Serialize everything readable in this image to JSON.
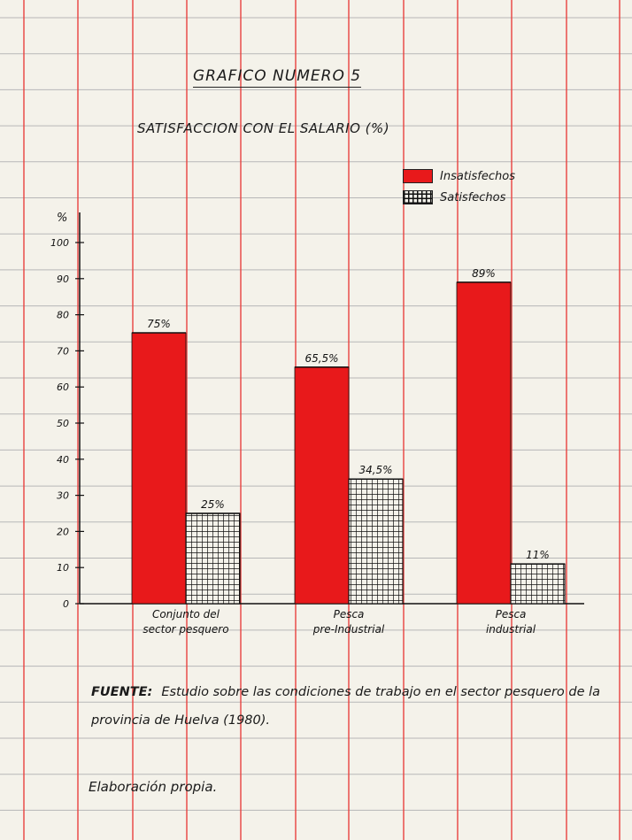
{
  "title": "GRAFICO NUMERO 5",
  "subtitle": "SATISFACCION CON EL SALARIO (%)",
  "chart_data": {
    "type": "bar",
    "title": "GRAFICO NUMERO 5",
    "subtitle": "SATISFACCION CON EL SALARIO (%)",
    "ylabel": "%",
    "xlabel": "",
    "ylim": [
      0,
      100
    ],
    "yticks": [
      "0",
      "10",
      "20",
      "30",
      "40",
      "50",
      "60",
      "70",
      "80",
      "90",
      "100"
    ],
    "categories": [
      [
        "Conjunto del",
        "sector pesquero"
      ],
      [
        "Pesca",
        "pre-Industrial"
      ],
      [
        "Pesca",
        "industrial"
      ]
    ],
    "series": [
      {
        "name": "Insatisfechos",
        "values": [
          75,
          65.5,
          89
        ],
        "labels": [
          "75%",
          "65,5%",
          "89%"
        ],
        "color": "#e8191b"
      },
      {
        "name": "Satisfechos",
        "values": [
          25,
          34.5,
          11
        ],
        "labels": [
          "25%",
          "34,5%",
          "11%"
        ],
        "color": "#111111"
      }
    ],
    "legend": "top-right",
    "grid": false
  },
  "source": {
    "label": "FUENTE:",
    "text": "Estudio sobre las condiciones de trabajo en el sector pesquero de la provincia de Huelva (1980)."
  },
  "note": "Elaboración propia.",
  "colors": {
    "paper": "#f4f2ea",
    "rule_red": "#e8423f",
    "rule_gray": "#b7b7b7",
    "bar_red": "#e8191b",
    "ink": "#111111"
  }
}
